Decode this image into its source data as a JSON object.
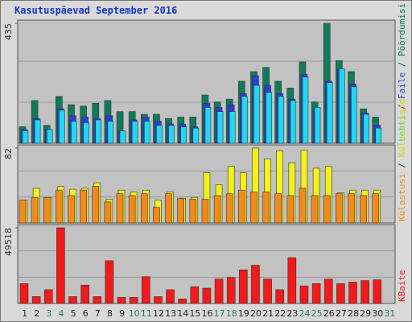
{
  "title": "Kasutuspäevad September 2016",
  "legend_separator": " / ",
  "chart_data": [
    {
      "type": "bar",
      "ylim": [
        0,
        435
      ],
      "yticks": [
        435
      ],
      "series": [
        {
          "name": "Pöördumisi",
          "color": "#117a5a",
          "values": [
            60,
            155,
            65,
            170,
            140,
            135,
            145,
            155,
            115,
            115,
            105,
            105,
            90,
            95,
            95,
            175,
            150,
            160,
            225,
            260,
            275,
            225,
            200,
            295,
            150,
            435,
            300,
            260,
            125,
            95,
            null
          ]
        },
        {
          "name": "Faile",
          "color": "#2a3fd6",
          "values": [
            50,
            90,
            50,
            125,
            100,
            95,
            90,
            100,
            45,
            85,
            95,
            80,
            70,
            70,
            60,
            145,
            130,
            140,
            180,
            245,
            210,
            180,
            160,
            250,
            125,
            225,
            270,
            215,
            110,
            65,
            null
          ]
        },
        {
          "name": "Lehti",
          "color": "#1ed8f5",
          "values": [
            45,
            85,
            50,
            120,
            80,
            75,
            85,
            80,
            45,
            80,
            80,
            65,
            65,
            60,
            55,
            130,
            115,
            115,
            170,
            210,
            185,
            170,
            155,
            240,
            130,
            220,
            270,
            205,
            105,
            55,
            null
          ]
        }
      ]
    },
    {
      "type": "bar",
      "ylim": [
        0,
        82
      ],
      "yticks": [
        82
      ],
      "series": [
        {
          "name": "Külastajaid",
          "color": "#f2f21a",
          "values": [
            25,
            38,
            28,
            40,
            37,
            38,
            44,
            26,
            36,
            34,
            36,
            25,
            34,
            27,
            28,
            55,
            42,
            62,
            55,
            82,
            70,
            79,
            66,
            80,
            60,
            62,
            33,
            36,
            36,
            36,
            null
          ]
        },
        {
          "name": "Külastusi",
          "color": "#f28a1a",
          "values": [
            25,
            28,
            28,
            36,
            30,
            36,
            40,
            23,
            32,
            30,
            32,
            17,
            32,
            27,
            26,
            26,
            30,
            32,
            36,
            34,
            34,
            32,
            30,
            38,
            30,
            30,
            32,
            32,
            30,
            32,
            null
          ]
        }
      ]
    },
    {
      "type": "bar",
      "ylim": [
        0,
        49518
      ],
      "yticks": [
        49518
      ],
      "categories": [
        "1",
        "2",
        "3",
        "4",
        "5",
        "6",
        "7",
        "8",
        "9",
        "10",
        "11",
        "12",
        "13",
        "14",
        "15",
        "16",
        "17",
        "18",
        "19",
        "20",
        "21",
        "22",
        "23",
        "24",
        "25",
        "26",
        "27",
        "28",
        "29",
        "30",
        "31"
      ],
      "category_colors": [
        "#222",
        "#222",
        "#2a7a5a",
        "#2a7a5a",
        "#222",
        "#222",
        "#222",
        "#222",
        "#222",
        "#2a7a5a",
        "#2a7a5a",
        "#222",
        "#222",
        "#222",
        "#222",
        "#222",
        "#2a7a5a",
        "#2a7a5a",
        "#222",
        "#222",
        "#222",
        "#222",
        "#222",
        "#2a7a5a",
        "#2a7a5a",
        "#222",
        "#222",
        "#222",
        "#222",
        "#222",
        "#2a7a5a"
      ],
      "series": [
        {
          "name": "KBaite",
          "color": "#f21a1a",
          "values": [
            13000,
            4500,
            9000,
            49518,
            4500,
            12000,
            4500,
            28000,
            4000,
            4000,
            17500,
            4500,
            9000,
            3000,
            11000,
            10000,
            16000,
            17000,
            22000,
            25000,
            16000,
            9000,
            30000,
            11500,
            13000,
            16000,
            13000,
            14000,
            15000,
            15500,
            null
          ]
        }
      ]
    }
  ]
}
